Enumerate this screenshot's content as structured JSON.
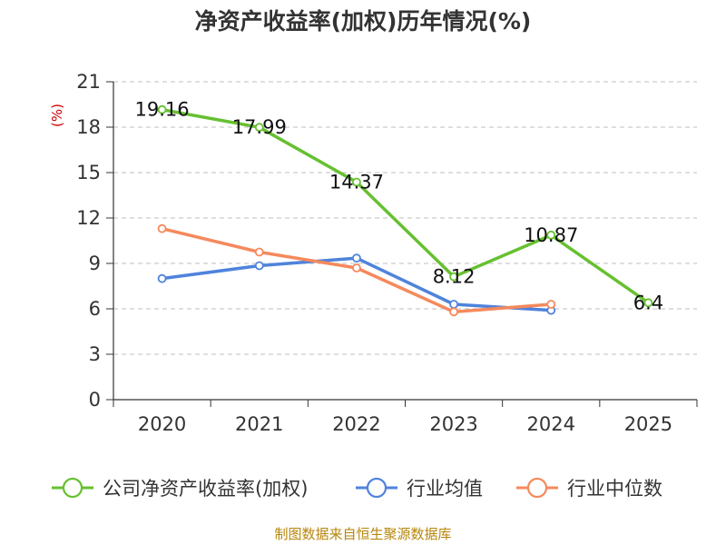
{
  "chart_data": {
    "type": "line",
    "title": "净资产收益率(加权)历年情况(%)",
    "ylabel": "(%)",
    "xlabel": "",
    "categories": [
      "2020",
      "2021",
      "2022",
      "2023",
      "2024",
      "2025"
    ],
    "ylim": [
      0,
      21
    ],
    "yticks": [
      0,
      3,
      6,
      9,
      12,
      15,
      18,
      21
    ],
    "grid": true,
    "legend_position": "bottom",
    "series": [
      {
        "name": "公司净资产收益率(加权)",
        "color": "#66c030",
        "values": [
          19.16,
          17.99,
          14.37,
          8.12,
          10.87,
          6.4
        ],
        "labels": [
          "19.16",
          "17.99",
          "14.37",
          "8.12",
          "10.87",
          "6.4"
        ],
        "show_labels": true
      },
      {
        "name": "行业均值",
        "color": "#4f83dc",
        "values": [
          8.0,
          8.85,
          9.35,
          6.3,
          5.9,
          null
        ],
        "show_labels": false
      },
      {
        "name": "行业中位数",
        "color": "#f5895c",
        "values": [
          11.3,
          9.75,
          8.7,
          5.8,
          6.3,
          null
        ],
        "show_labels": false
      }
    ]
  },
  "footer": {
    "source": "制图数据来自恒生聚源数据库"
  },
  "colors": {
    "unit_label": "#cc0000",
    "source_text": "#b8860b",
    "axis": "#333333",
    "grid": "#cccccc"
  }
}
